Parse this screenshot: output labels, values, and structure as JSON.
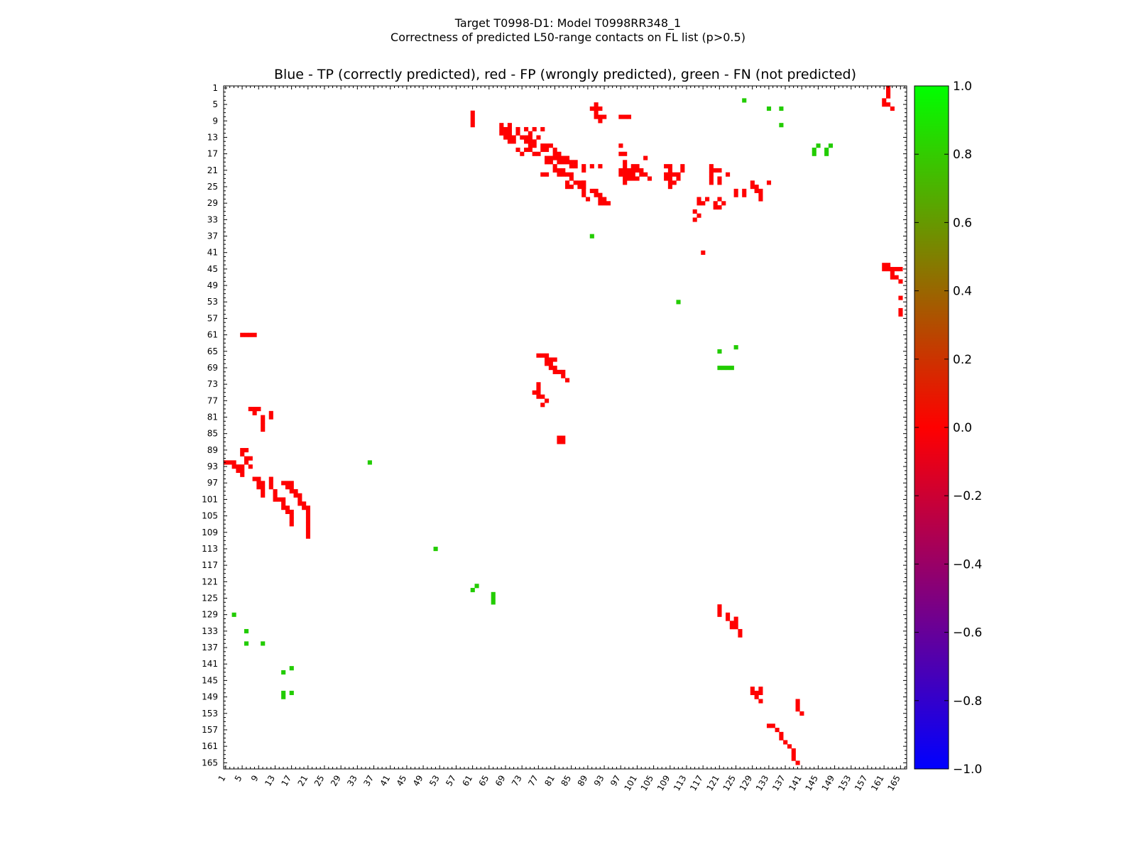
{
  "chart_data": {
    "type": "heatmap",
    "title": "Target T0998-D1: Model T0998RR348_1",
    "subtitle": "Correctness of predicted L50-range contacts on FL list (p>0.5)",
    "plot_title": "Blue - TP (correctly predicted), red - FP (wrongly predicted), green - FN (not predicted)",
    "n_residues": 166,
    "axis_range": [
      1,
      166
    ],
    "tick_labels": [
      "1",
      "5",
      "9",
      "13",
      "17",
      "21",
      "25",
      "29",
      "33",
      "37",
      "41",
      "45",
      "49",
      "53",
      "57",
      "61",
      "65",
      "69",
      "73",
      "77",
      "81",
      "85",
      "89",
      "93",
      "97",
      "101",
      "105",
      "109",
      "113",
      "117",
      "121",
      "125",
      "129",
      "133",
      "137",
      "141",
      "145",
      "149",
      "153",
      "157",
      "161",
      "165"
    ],
    "colorbar": {
      "min": -1.0,
      "max": 1.0,
      "ticks": [
        "1.0",
        "0.8",
        "0.6",
        "0.4",
        "0.2",
        "0.0",
        "−0.2",
        "−0.4",
        "−0.6",
        "−0.8",
        "−1.0"
      ],
      "colors": [
        "#00ff00",
        "#ff0000",
        "#0000ff"
      ]
    },
    "colors": {
      "tp": "#0000ff",
      "fp": "#ff0000",
      "fn": "#22cc00"
    },
    "fp_contacts": [
      [
        1,
        162
      ],
      [
        2,
        162
      ],
      [
        3,
        162
      ],
      [
        4,
        161
      ],
      [
        5,
        161
      ],
      [
        5,
        162
      ],
      [
        6,
        163
      ],
      [
        5,
        91
      ],
      [
        6,
        90
      ],
      [
        6,
        91
      ],
      [
        6,
        92
      ],
      [
        7,
        91
      ],
      [
        8,
        91
      ],
      [
        8,
        92
      ],
      [
        8,
        93
      ],
      [
        9,
        92
      ],
      [
        8,
        97
      ],
      [
        8,
        98
      ],
      [
        8,
        99
      ],
      [
        7,
        61
      ],
      [
        8,
        61
      ],
      [
        9,
        61
      ],
      [
        10,
        61
      ],
      [
        10,
        68
      ],
      [
        11,
        68
      ],
      [
        10,
        70
      ],
      [
        11,
        69
      ],
      [
        11,
        70
      ],
      [
        12,
        68
      ],
      [
        12,
        69
      ],
      [
        12,
        70
      ],
      [
        13,
        70
      ],
      [
        11,
        72
      ],
      [
        11,
        74
      ],
      [
        11,
        76
      ],
      [
        11,
        78
      ],
      [
        12,
        72
      ],
      [
        12,
        75
      ],
      [
        13,
        69
      ],
      [
        13,
        70
      ],
      [
        13,
        71
      ],
      [
        14,
        70
      ],
      [
        14,
        71
      ],
      [
        13,
        73
      ],
      [
        13,
        74
      ],
      [
        13,
        75
      ],
      [
        13,
        77
      ],
      [
        14,
        74
      ],
      [
        14,
        75
      ],
      [
        14,
        76
      ],
      [
        15,
        75
      ],
      [
        15,
        76
      ],
      [
        15,
        78
      ],
      [
        15,
        79
      ],
      [
        15,
        80
      ],
      [
        16,
        75
      ],
      [
        16,
        78
      ],
      [
        16,
        79
      ],
      [
        16,
        72
      ],
      [
        16,
        74
      ],
      [
        17,
        73
      ],
      [
        17,
        76
      ],
      [
        17,
        77
      ],
      [
        16,
        81
      ],
      [
        17,
        81
      ],
      [
        17,
        82
      ],
      [
        18,
        82
      ],
      [
        18,
        83
      ],
      [
        18,
        84
      ],
      [
        19,
        82
      ],
      [
        19,
        83
      ],
      [
        19,
        84
      ],
      [
        19,
        85
      ],
      [
        19,
        86
      ],
      [
        20,
        85
      ],
      [
        20,
        86
      ],
      [
        18,
        79
      ],
      [
        18,
        80
      ],
      [
        18,
        81
      ],
      [
        19,
        79
      ],
      [
        19,
        80
      ],
      [
        20,
        81
      ],
      [
        21,
        81
      ],
      [
        21,
        82
      ],
      [
        22,
        82
      ],
      [
        22,
        83
      ],
      [
        22,
        84
      ],
      [
        22,
        85
      ],
      [
        23,
        85
      ],
      [
        22,
        78
      ],
      [
        20,
        88
      ],
      [
        21,
        88
      ],
      [
        20,
        90
      ],
      [
        20,
        92
      ],
      [
        21,
        83
      ],
      [
        22,
        79
      ],
      [
        15,
        97
      ],
      [
        17,
        97
      ],
      [
        17,
        98
      ],
      [
        19,
        98
      ],
      [
        20,
        98
      ],
      [
        20,
        101
      ],
      [
        18,
        103
      ],
      [
        21,
        97
      ],
      [
        21,
        98
      ],
      [
        21,
        99
      ],
      [
        21,
        100
      ],
      [
        21,
        101
      ],
      [
        22,
        97
      ],
      [
        22,
        98
      ],
      [
        22,
        99
      ],
      [
        22,
        100
      ],
      [
        23,
        98
      ],
      [
        23,
        99
      ],
      [
        23,
        100
      ],
      [
        24,
        98
      ],
      [
        20,
        100
      ],
      [
        21,
        102
      ],
      [
        22,
        102
      ],
      [
        22,
        103
      ],
      [
        23,
        101
      ],
      [
        23,
        104
      ],
      [
        20,
        108
      ],
      [
        20,
        109
      ],
      [
        21,
        109
      ],
      [
        22,
        108
      ],
      [
        22,
        109
      ],
      [
        22,
        110
      ],
      [
        23,
        108
      ],
      [
        23,
        109
      ],
      [
        24,
        109
      ],
      [
        24,
        110
      ],
      [
        25,
        109
      ],
      [
        20,
        112
      ],
      [
        21,
        112
      ],
      [
        22,
        111
      ],
      [
        23,
        111
      ],
      [
        24,
        88
      ],
      [
        25,
        88
      ],
      [
        26,
        88
      ],
      [
        26,
        90
      ],
      [
        26,
        91
      ],
      [
        27,
        88
      ],
      [
        27,
        91
      ],
      [
        27,
        92
      ],
      [
        28,
        89
      ],
      [
        28,
        92
      ],
      [
        28,
        93
      ],
      [
        29,
        92
      ],
      [
        29,
        93
      ],
      [
        29,
        94
      ],
      [
        24,
        84
      ],
      [
        25,
        84
      ],
      [
        25,
        85
      ],
      [
        24,
        86
      ],
      [
        24,
        87
      ],
      [
        24,
        88
      ],
      [
        25,
        87
      ],
      [
        25,
        88
      ],
      [
        20,
        119
      ],
      [
        21,
        119
      ],
      [
        21,
        120
      ],
      [
        21,
        121
      ],
      [
        22,
        119
      ],
      [
        23,
        119
      ],
      [
        24,
        119
      ],
      [
        23,
        121
      ],
      [
        24,
        121
      ],
      [
        22,
        123
      ],
      [
        24,
        129
      ],
      [
        25,
        129
      ],
      [
        25,
        130
      ],
      [
        26,
        130
      ],
      [
        26,
        131
      ],
      [
        27,
        131
      ],
      [
        28,
        131
      ],
      [
        24,
        133
      ],
      [
        26,
        125
      ],
      [
        26,
        127
      ],
      [
        27,
        125
      ],
      [
        27,
        127
      ],
      [
        28,
        116
      ],
      [
        29,
        116
      ],
      [
        29,
        117
      ],
      [
        28,
        118
      ],
      [
        29,
        120
      ],
      [
        30,
        120
      ],
      [
        28,
        121
      ],
      [
        29,
        122
      ],
      [
        30,
        121
      ],
      [
        31,
        115
      ],
      [
        32,
        116
      ],
      [
        33,
        115
      ],
      [
        41,
        117
      ],
      [
        44,
        161
      ],
      [
        44,
        162
      ],
      [
        45,
        161
      ],
      [
        45,
        162
      ],
      [
        45,
        163
      ],
      [
        45,
        164
      ],
      [
        45,
        165
      ],
      [
        46,
        163
      ],
      [
        47,
        163
      ],
      [
        47,
        164
      ],
      [
        48,
        165
      ],
      [
        52,
        165
      ],
      [
        55,
        165
      ],
      [
        56,
        165
      ],
      [
        61,
        5
      ],
      [
        61,
        6
      ],
      [
        61,
        7
      ],
      [
        61,
        8
      ],
      [
        66,
        77
      ],
      [
        66,
        78
      ],
      [
        66,
        79
      ],
      [
        67,
        79
      ],
      [
        67,
        80
      ],
      [
        67,
        81
      ],
      [
        68,
        79
      ],
      [
        68,
        80
      ],
      [
        69,
        80
      ],
      [
        69,
        81
      ],
      [
        70,
        81
      ],
      [
        70,
        82
      ],
      [
        70,
        83
      ],
      [
        71,
        83
      ],
      [
        72,
        84
      ],
      [
        73,
        77
      ],
      [
        74,
        77
      ],
      [
        75,
        76
      ],
      [
        75,
        77
      ],
      [
        76,
        77
      ],
      [
        76,
        78
      ],
      [
        77,
        79
      ],
      [
        78,
        78
      ],
      [
        79,
        7
      ],
      [
        79,
        8
      ],
      [
        79,
        9
      ],
      [
        80,
        8
      ],
      [
        81,
        10
      ],
      [
        82,
        10
      ],
      [
        83,
        10
      ],
      [
        84,
        10
      ],
      [
        80,
        12
      ],
      [
        81,
        12
      ],
      [
        86,
        82
      ],
      [
        86,
        83
      ],
      [
        87,
        82
      ],
      [
        87,
        83
      ],
      [
        89,
        5
      ],
      [
        89,
        6
      ],
      [
        90,
        5
      ],
      [
        91,
        6
      ],
      [
        91,
        7
      ],
      [
        92,
        6
      ],
      [
        93,
        7
      ],
      [
        92,
        1
      ],
      [
        92,
        2
      ],
      [
        92,
        3
      ],
      [
        93,
        3
      ],
      [
        93,
        4
      ],
      [
        93,
        5
      ],
      [
        94,
        4
      ],
      [
        94,
        5
      ],
      [
        95,
        5
      ],
      [
        97,
        9
      ],
      [
        97,
        10
      ],
      [
        98,
        9
      ],
      [
        98,
        10
      ],
      [
        99,
        10
      ],
      [
        100,
        10
      ],
      [
        96,
        8
      ],
      [
        96,
        9
      ],
      [
        96,
        12
      ],
      [
        97,
        12
      ],
      [
        98,
        12
      ],
      [
        99,
        13
      ],
      [
        100,
        13
      ],
      [
        101,
        13
      ],
      [
        101,
        14
      ],
      [
        101,
        15
      ],
      [
        97,
        15
      ],
      [
        97,
        16
      ],
      [
        97,
        17
      ],
      [
        98,
        16
      ],
      [
        98,
        17
      ],
      [
        99,
        17
      ],
      [
        99,
        18
      ],
      [
        100,
        18
      ],
      [
        100,
        19
      ],
      [
        101,
        19
      ],
      [
        102,
        19
      ],
      [
        102,
        20
      ],
      [
        103,
        20
      ],
      [
        103,
        21
      ],
      [
        104,
        21
      ],
      [
        105,
        21
      ],
      [
        106,
        21
      ],
      [
        107,
        21
      ],
      [
        108,
        21
      ],
      [
        109,
        21
      ],
      [
        110,
        21
      ],
      [
        102,
        15
      ],
      [
        103,
        15
      ],
      [
        103,
        16
      ],
      [
        104,
        16
      ],
      [
        104,
        17
      ],
      [
        105,
        17
      ],
      [
        106,
        17
      ],
      [
        107,
        17
      ],
      [
        127,
        121
      ],
      [
        128,
        121
      ],
      [
        129,
        121
      ],
      [
        129,
        123
      ],
      [
        130,
        123
      ],
      [
        131,
        124
      ],
      [
        132,
        124
      ],
      [
        130,
        125
      ],
      [
        131,
        125
      ],
      [
        132,
        125
      ],
      [
        133,
        126
      ],
      [
        134,
        126
      ],
      [
        147,
        129
      ],
      [
        147,
        131
      ],
      [
        148,
        129
      ],
      [
        148,
        130
      ],
      [
        148,
        131
      ],
      [
        149,
        130
      ],
      [
        150,
        131
      ],
      [
        150,
        140
      ],
      [
        151,
        140
      ],
      [
        152,
        140
      ],
      [
        153,
        141
      ],
      [
        156,
        133
      ],
      [
        156,
        134
      ],
      [
        157,
        135
      ],
      [
        158,
        136
      ],
      [
        159,
        136
      ],
      [
        160,
        137
      ],
      [
        161,
        138
      ],
      [
        162,
        139
      ],
      [
        163,
        139
      ],
      [
        164,
        139
      ],
      [
        165,
        140
      ]
    ],
    "fn_contacts": [
      [
        4,
        127
      ],
      [
        6,
        133
      ],
      [
        6,
        136
      ],
      [
        10,
        136
      ],
      [
        15,
        145
      ],
      [
        15,
        148
      ],
      [
        16,
        144
      ],
      [
        16,
        147
      ],
      [
        17,
        144
      ],
      [
        17,
        147
      ],
      [
        37,
        90
      ],
      [
        53,
        111
      ],
      [
        65,
        121
      ],
      [
        64,
        125
      ],
      [
        69,
        121
      ],
      [
        69,
        122
      ],
      [
        69,
        123
      ],
      [
        69,
        124
      ],
      [
        92,
        36
      ],
      [
        113,
        52
      ],
      [
        123,
        61
      ],
      [
        122,
        62
      ],
      [
        124,
        66
      ],
      [
        125,
        66
      ],
      [
        126,
        66
      ],
      [
        129,
        3
      ],
      [
        133,
        6
      ],
      [
        136,
        6
      ],
      [
        136,
        10
      ],
      [
        142,
        17
      ],
      [
        143,
        15
      ],
      [
        148,
        15
      ],
      [
        149,
        15
      ],
      [
        148,
        17
      ]
    ],
    "tp_contacts": []
  }
}
